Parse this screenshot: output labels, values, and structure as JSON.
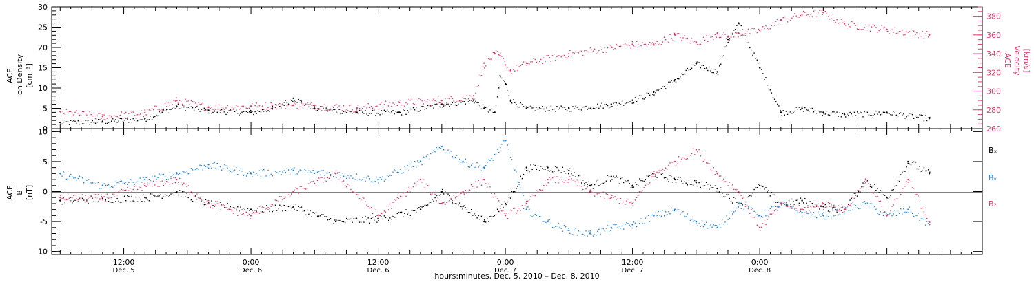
{
  "colors": {
    "black": "#000000",
    "pink": "#e8386a",
    "blue": "#1f86e8"
  },
  "top_panel": {
    "left_label": [
      "ACE",
      "Ion Density",
      "[cm⁻³]"
    ],
    "right_label": [
      "ACE",
      "Velocity",
      "[km/s]"
    ],
    "left_ticks": [
      "0",
      "5",
      "10",
      "15",
      "20",
      "25",
      "30"
    ],
    "right_ticks": [
      "260",
      "280",
      "300",
      "320",
      "340",
      "360",
      "380"
    ]
  },
  "bottom_panel": {
    "left_label": [
      "ACE",
      "B",
      "[nT]"
    ],
    "ticks": [
      "-10",
      "-5",
      "0",
      "5",
      "10"
    ],
    "legend": [
      "Bₓ",
      "Bᵧ",
      "B₂"
    ]
  },
  "x_axis": {
    "ticks": [
      {
        "time": "12:00",
        "day": "Dec. 5"
      },
      {
        "time": "0:00",
        "day": "Dec. 6"
      },
      {
        "time": "12:00",
        "day": "Dec. 6"
      },
      {
        "time": "0:00",
        "day": "Dec. 7"
      },
      {
        "time": "12:00",
        "day": "Dec. 7"
      },
      {
        "time": "0:00",
        "day": "Dec. 8"
      }
    ],
    "title": "hours:minutes, Dec. 5, 2010 – Dec. 8, 2010"
  },
  "chart_data": [
    {
      "type": "scatter",
      "x_unit": "hours since Dec. 5 00:00",
      "xlim": [
        5.2,
        93
      ],
      "x": [
        6,
        10,
        14,
        17,
        20,
        24,
        26,
        28,
        30,
        34,
        38,
        42,
        45,
        46,
        47,
        47.5,
        48,
        48.5,
        50,
        54,
        58,
        60,
        62,
        64,
        66,
        68,
        69,
        70,
        72,
        74,
        76,
        78,
        80,
        84,
        88
      ],
      "series": [
        {
          "name": "Ion Density",
          "axis": "left",
          "ylim": [
            0,
            30
          ],
          "values": [
            1.5,
            1.8,
            2.5,
            5.5,
            4.5,
            4,
            5,
            7.5,
            5,
            4,
            4,
            6,
            7,
            5,
            4,
            13,
            11,
            7,
            5,
            5,
            6,
            7,
            9,
            12,
            16,
            14,
            22,
            26,
            15,
            4,
            5,
            4,
            3.5,
            4,
            2.5
          ]
        },
        {
          "name": "Velocity",
          "axis": "right",
          "ylim": [
            260,
            390
          ],
          "values": [
            278,
            273,
            277,
            290,
            283,
            284,
            285,
            285,
            285,
            282,
            288,
            290,
            295,
            330,
            340,
            338,
            328,
            322,
            330,
            340,
            347,
            350,
            350,
            360,
            352,
            362,
            358,
            362,
            365,
            376,
            382,
            384,
            372,
            366,
            360
          ]
        }
      ]
    },
    {
      "type": "scatter",
      "x_unit": "hours since Dec. 5 00:00",
      "xlim": [
        5.2,
        93
      ],
      "ylim": [
        -10.5,
        10.5
      ],
      "x": [
        6,
        10,
        14,
        17,
        20,
        24,
        28,
        32,
        36,
        40,
        42,
        44,
        46,
        48,
        50,
        52,
        54,
        56,
        58,
        60,
        62,
        64,
        66,
        68,
        70,
        72,
        74,
        76,
        78,
        80,
        82,
        84,
        86,
        88
      ],
      "series": [
        {
          "name": "Bₓ",
          "values": [
            -1.5,
            -1.2,
            -1,
            0,
            -2,
            -3,
            -2.5,
            -5,
            -4.5,
            -3,
            0,
            -2.5,
            -5,
            -2,
            4,
            4,
            3.5,
            1,
            2.5,
            1,
            3,
            2,
            1.5,
            0.5,
            -2,
            1,
            -2,
            -1.5,
            -2.5,
            -3,
            2,
            -1,
            5,
            3
          ]
        },
        {
          "name": "Bᵧ",
          "values": [
            3,
            1,
            2,
            3,
            4.5,
            3,
            3.5,
            3,
            2,
            5,
            7.5,
            5,
            4,
            8.5,
            -3,
            -5,
            -6.5,
            -7,
            -6,
            -5.5,
            -4,
            -3,
            -5,
            -6,
            -2,
            -4,
            -2,
            -3.5,
            -4,
            -3,
            -2,
            -4,
            -3,
            -5.5
          ]
        },
        {
          "name": "B₂",
          "values": [
            -1,
            -1,
            1,
            2,
            -2,
            -4,
            0,
            3,
            -4,
            2,
            -2,
            0,
            2,
            -4,
            -2,
            2,
            2,
            0,
            -1,
            -2,
            3,
            5,
            7,
            3,
            0,
            -6,
            -2,
            -3,
            -2,
            -3,
            2,
            -4,
            2,
            -5
          ]
        }
      ]
    }
  ]
}
